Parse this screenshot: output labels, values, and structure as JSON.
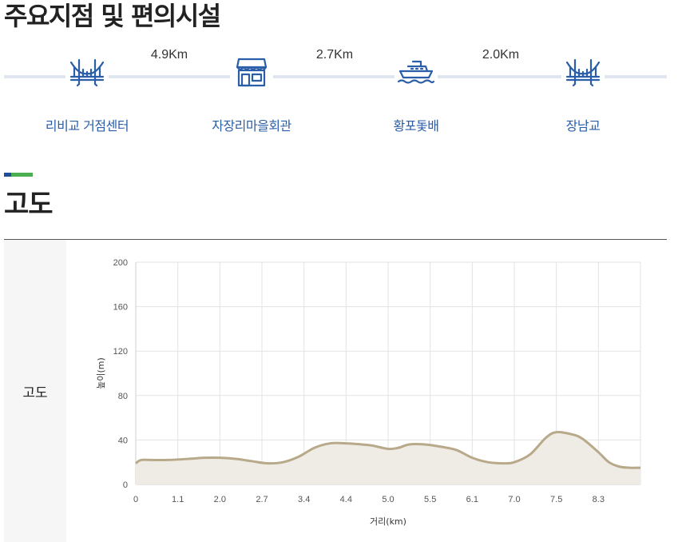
{
  "page_title": "주요지점 및 편의시설",
  "route": {
    "points": [
      {
        "name": "리비교 거점센터",
        "icon": "bridge-icon"
      },
      {
        "name": "자장리마을회관",
        "icon": "store-icon"
      },
      {
        "name": "황포돛배",
        "icon": "ship-icon"
      },
      {
        "name": "장남교",
        "icon": "bridge-icon"
      }
    ],
    "segments": [
      "4.9Km",
      "2.7Km",
      "2.0Km"
    ]
  },
  "section_title": "고도",
  "table": {
    "row_header": "고도"
  },
  "colors": {
    "accent_blue": "#1f4e9c",
    "accent_green": "#4cb050",
    "icon_blue": "#2a5ea8",
    "line": "#b8a98a",
    "fill": "#efece6"
  },
  "chart_data": {
    "type": "area",
    "xlabel": "거리(km)",
    "ylabel": "높이(m)",
    "ylim": [
      0,
      200
    ],
    "xlim": [
      0,
      9.6
    ],
    "yticks": [
      0,
      40,
      80,
      120,
      160,
      200
    ],
    "xticks": [
      "0",
      "1.1",
      "2.0",
      "2.7",
      "3.4",
      "4.4",
      "5.0",
      "5.5",
      "6.1",
      "7.0",
      "7.5",
      "8.3"
    ],
    "grid": true,
    "series": [
      {
        "x": [
          0,
          0.1,
          0.3,
          0.6,
          1.0,
          1.3,
          1.6,
          1.9,
          2.2,
          2.5,
          2.8,
          3.1,
          3.4,
          3.7,
          4.0,
          4.3,
          4.5,
          4.8,
          5.0,
          5.2,
          5.5,
          5.8,
          6.1,
          6.4,
          6.7,
          7.0,
          7.2,
          7.5,
          7.8,
          8.0,
          8.3,
          8.5,
          8.8,
          9.0,
          9.2,
          9.4,
          9.6
        ],
        "y": [
          19,
          22,
          22,
          22,
          23,
          24,
          24,
          23,
          21,
          19,
          20,
          25,
          33,
          37,
          37,
          36,
          35,
          32,
          33,
          36,
          36,
          34,
          31,
          24,
          20,
          19,
          20,
          27,
          42,
          47,
          45,
          41,
          29,
          20,
          16,
          15,
          15
        ]
      }
    ]
  }
}
